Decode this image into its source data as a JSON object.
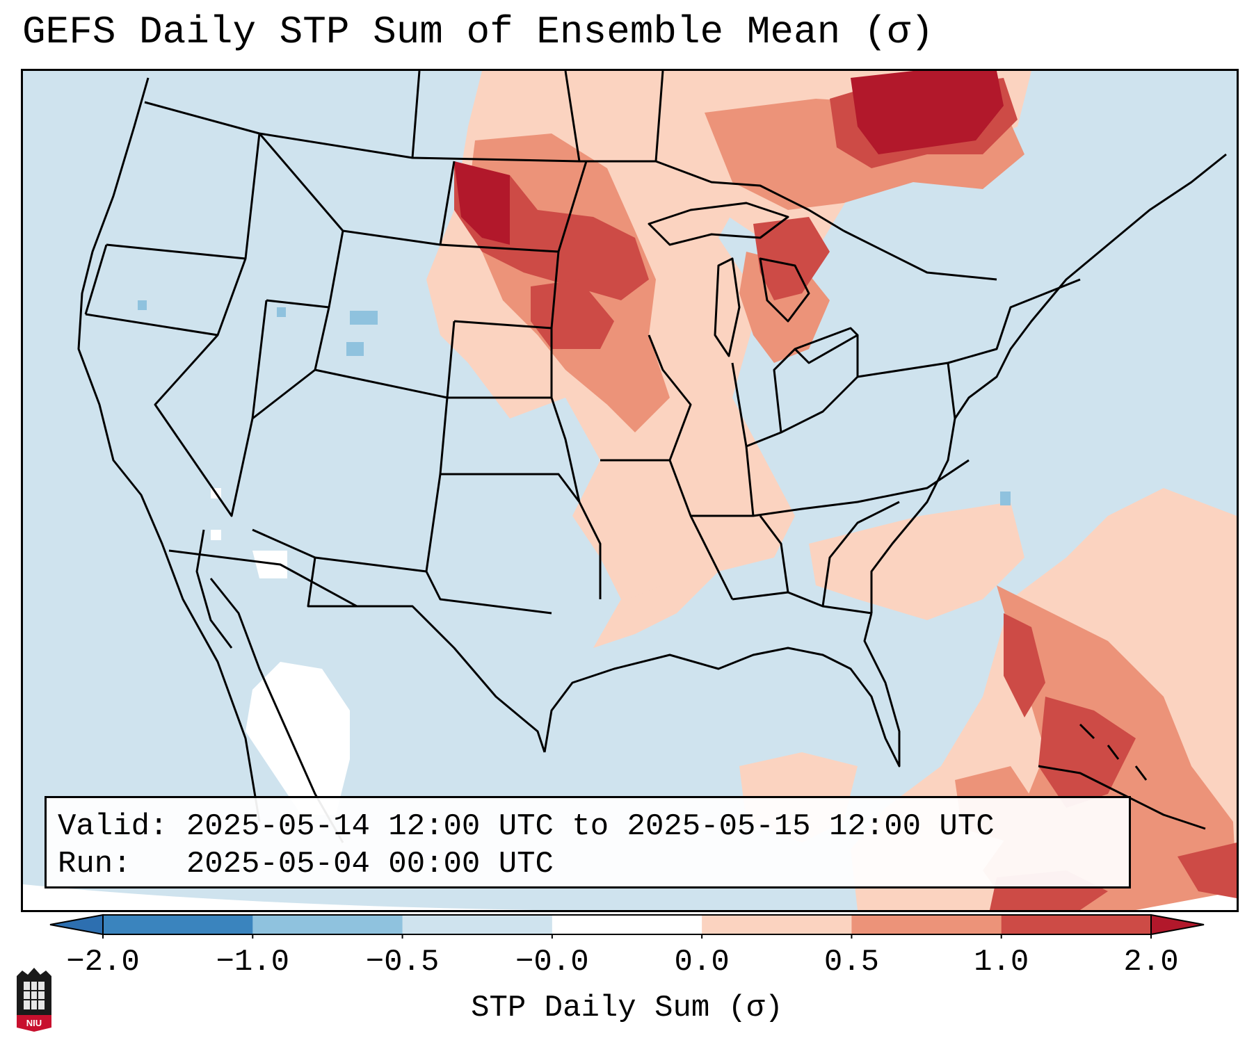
{
  "title": "GEFS Daily STP Sum of Ensemble Mean (σ)",
  "info": {
    "valid_label": "Valid:",
    "valid_value": "2025-05-14 12:00 UTC to 2025-05-15 12:00 UTC",
    "run_label": "Run:",
    "run_value": "2025-05-04 00:00 UTC"
  },
  "colorbar": {
    "label": "STP Daily Sum (σ)",
    "ticks": [
      "−2.0",
      "−1.0",
      "−0.5",
      "−0.0",
      "0.0",
      "0.5",
      "1.0",
      "2.0"
    ],
    "bin_colors": [
      "#3a84be",
      "#8fc2de",
      "#cfe3ee",
      "#ffffff",
      "#fbd3c0",
      "#ec9379",
      "#cd4b46"
    ],
    "extend_low_color": "#2d6fb0",
    "extend_high_color": "#b2182b"
  },
  "map": {
    "background_color": "#cfe3ee",
    "outline_color": "#000000"
  },
  "logo": {
    "text": "NIU",
    "colors": [
      "#c8102e",
      "#000000"
    ]
  }
}
